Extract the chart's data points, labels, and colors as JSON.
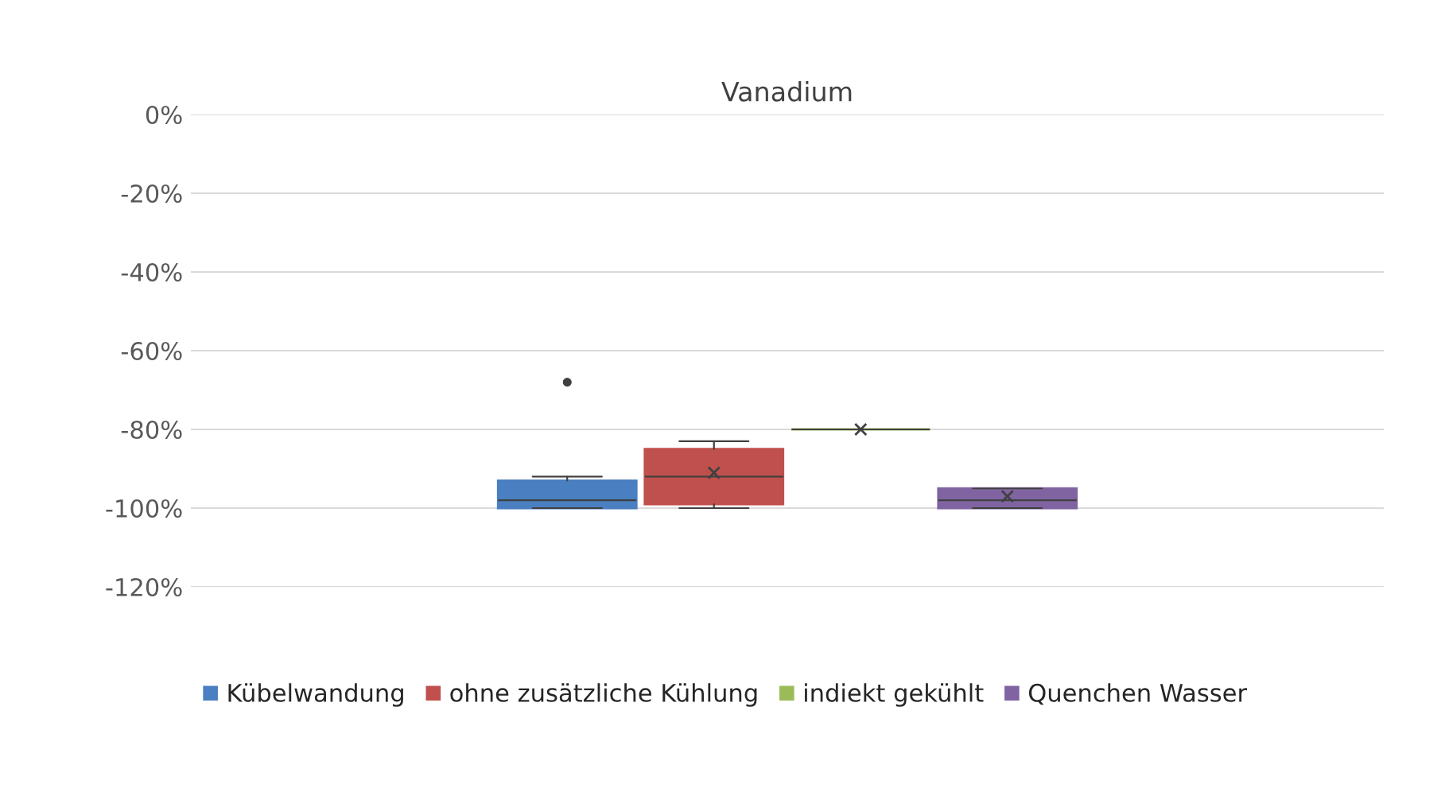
{
  "chart_data": {
    "type": "box",
    "title": "Vanadium",
    "categories": [
      null
    ],
    "series": [
      {
        "name": "Kübelwandung",
        "color": "#4a7fc1",
        "boxes": [
          {
            "low": -100,
            "q1": -100,
            "median": -98,
            "q3": -93,
            "high": -92,
            "outliers": [
              -68
            ]
          }
        ]
      },
      {
        "name": "ohne zusätzliche Kühlung",
        "color": "#c0504d",
        "boxes": [
          {
            "low": -100,
            "q1": -99,
            "median": -92,
            "q3": -85,
            "high": -83,
            "mean": -91
          }
        ]
      },
      {
        "name": "indiekt gekühlt",
        "color": "#9bbb59",
        "boxes": [
          {
            "low": -80,
            "q1": -80,
            "median": -80,
            "q3": -80,
            "high": -80,
            "mean": -80
          }
        ]
      },
      {
        "name": "Quenchen Wasser",
        "color": "#8064a2",
        "boxes": [
          {
            "low": -100,
            "q1": -100,
            "median": -98,
            "q3": -95,
            "high": -95,
            "mean": -97
          }
        ]
      }
    ],
    "ylim": [
      -120,
      0
    ],
    "yticks": [
      {
        "value": 0,
        "label": "0%"
      },
      {
        "value": -20,
        "label": "-20%"
      },
      {
        "value": -40,
        "label": "-40%"
      },
      {
        "value": -60,
        "label": "-60%"
      },
      {
        "value": -80,
        "label": "-80%"
      },
      {
        "value": -100,
        "label": "-100%"
      },
      {
        "value": -120,
        "label": "-120%"
      }
    ],
    "grid": "y",
    "legend": "bottom"
  }
}
